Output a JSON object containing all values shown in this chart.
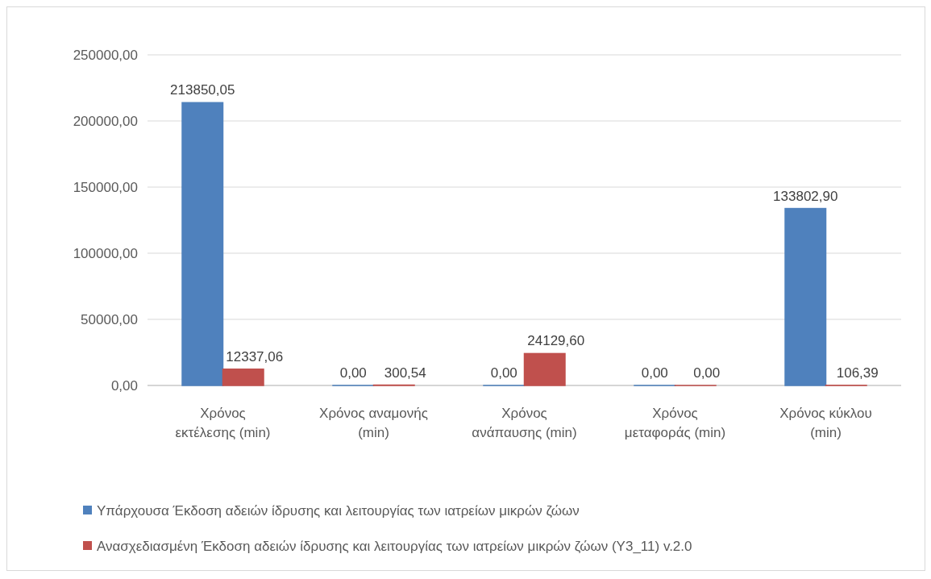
{
  "chart_data": {
    "type": "bar",
    "categories": [
      "Χρόνος εκτέλεσης (min)",
      "Χρόνος αναμονής (min)",
      "Χρόνος ανάπαυσης (min)",
      "Χρόνος μεταφοράς (min)",
      "Χρόνος κύκλου (min)"
    ],
    "series": [
      {
        "name": "Υπάρχουσα Έκδοση αδειών ίδρυσης και λειτουργίας των ιατρείων μικρών ζώων",
        "color": "#4f81bd",
        "values": [
          213850.05,
          0,
          0,
          0,
          133802.9
        ],
        "value_labels": [
          "213850,05",
          "0,00",
          "0,00",
          "0,00",
          "133802,90"
        ]
      },
      {
        "name": "Ανασχεδιασμένη  Έκδοση αδειών ίδρυσης και λειτουργίας των ιατρείων μικρών ζώων (Υ3_11) v.2.0",
        "color": "#c0504d",
        "values": [
          12337.06,
          300.54,
          24129.6,
          0,
          106.39
        ],
        "value_labels": [
          "12337,06",
          "300,54",
          "24129,60",
          "0,00",
          "106,39"
        ]
      }
    ],
    "ylim": [
      0,
      250000
    ],
    "yticks": [
      {
        "value": 0,
        "label": "0,00"
      },
      {
        "value": 50000,
        "label": "50000,00"
      },
      {
        "value": 100000,
        "label": "100000,00"
      },
      {
        "value": 150000,
        "label": "150000,00"
      },
      {
        "value": 200000,
        "label": "200000,00"
      },
      {
        "value": 250000,
        "label": "250000,00"
      }
    ],
    "grid": "y",
    "legend": "bottom"
  }
}
